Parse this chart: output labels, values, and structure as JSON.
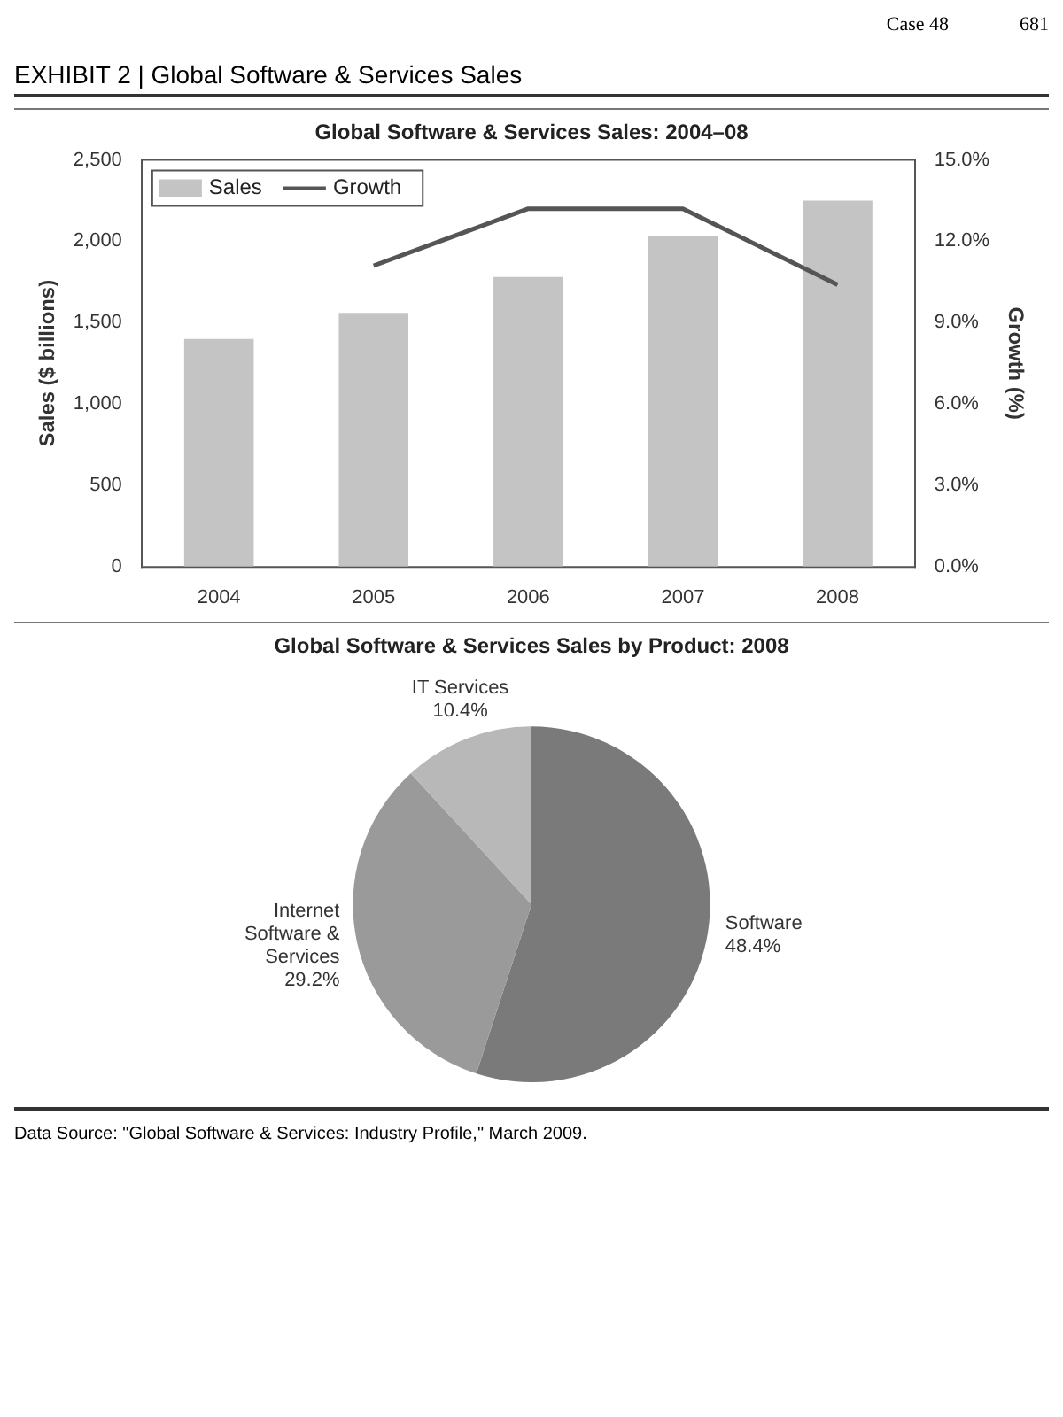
{
  "chart_data": [
    {
      "type": "bar",
      "title": "Global Software & Services Sales: 2004–08",
      "ylabel": "Sales ($ billions)",
      "y2label": "Growth (%)",
      "annotations": [
        "Case 48",
        "681",
        "EXHIBIT 2 | Global Software & Services Sales"
      ],
      "categories": [
        "2004",
        "2005",
        "2006",
        "2007",
        "2008"
      ],
      "series": [
        {
          "name": "Sales",
          "type": "bar",
          "color": "#c4c4c4",
          "values": [
            1400,
            1560,
            1780,
            2030,
            2250
          ]
        },
        {
          "name": "Growth",
          "type": "line",
          "axis": "y2",
          "color": "#555555",
          "values": [
            null,
            11.1,
            13.2,
            13.2,
            10.4
          ]
        }
      ],
      "ylim": [
        0,
        2500
      ],
      "yticks": [
        0,
        500,
        {
          "value": 1000,
          "label": "1,000"
        },
        {
          "value": 1500,
          "label": "1,500"
        },
        {
          "value": 2000,
          "label": "2,000"
        },
        {
          "value": 2500,
          "label": "2,500"
        }
      ],
      "y2lim": [
        0,
        15
      ],
      "y2ticks": [
        {
          "value": 0,
          "label": "0.0%"
        },
        {
          "value": 3,
          "label": "3.0%"
        },
        {
          "value": 6,
          "label": "6.0%"
        },
        {
          "value": 9,
          "label": "9.0%"
        },
        {
          "value": 12,
          "label": "12.0%"
        },
        {
          "value": 15,
          "label": "15.0%"
        }
      ],
      "legend": "top left",
      "marker": "none",
      "line_style": "solid"
    },
    {
      "type": "pie",
      "title": "Global Software & Services Sales by Product: 2008",
      "categories": [
        "Software",
        "Internet Software & Services",
        "IT Services"
      ],
      "values": [
        48.4,
        29.2,
        10.4
      ],
      "colors": [
        "#7a7a7a",
        "#9a9a9a",
        "#b8b8b8"
      ],
      "value_labels": [
        "48.4%",
        "29.2%",
        "10.4%"
      ],
      "annotations": [
        "Data Source: \"Global Software & Services: Industry Profile,\" March 2009."
      ],
      "legend": false
    }
  ]
}
